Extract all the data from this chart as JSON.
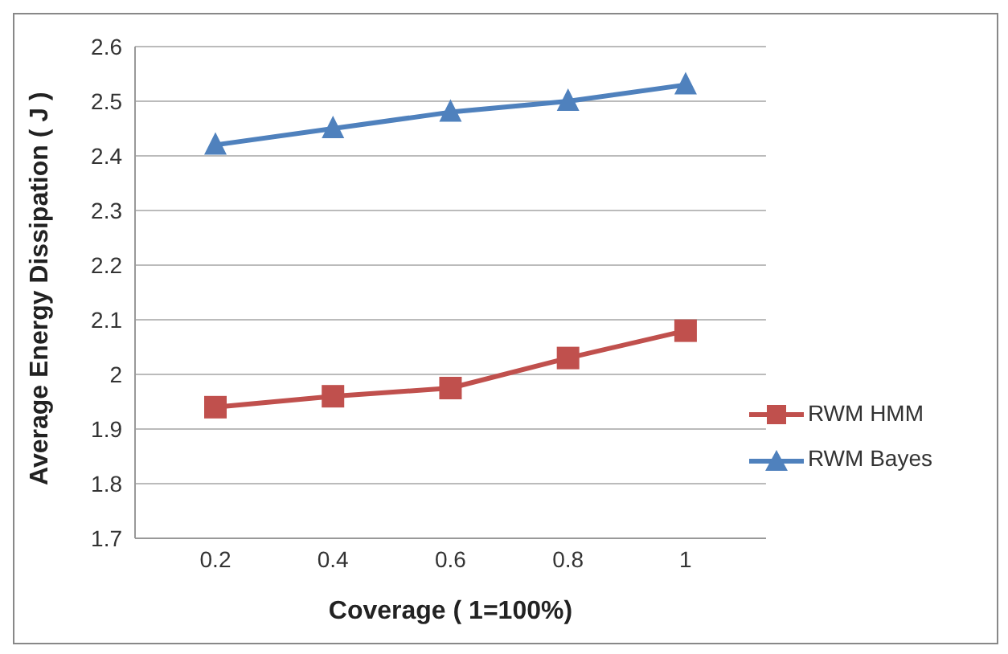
{
  "chart_data": {
    "type": "line",
    "xlabel": "Coverage ( 1=100%)",
    "ylabel": "Average Energy Dissipation ( J )",
    "categories": [
      "0.2",
      "0.4",
      "0.6",
      "0.8",
      "1"
    ],
    "series": [
      {
        "name": "RWM HMM",
        "color": "#c0504d",
        "values": [
          1.94,
          1.96,
          1.975,
          2.03,
          2.08
        ],
        "marker": "square"
      },
      {
        "name": "RWM Bayes",
        "color": "#4f81bd",
        "values": [
          2.42,
          2.45,
          2.48,
          2.5,
          2.53
        ],
        "marker": "triangle"
      }
    ],
    "ylim": [
      1.7,
      2.6
    ],
    "yticks": [
      1.7,
      1.8,
      1.9,
      2,
      2.1,
      2.2,
      2.3,
      2.4,
      2.5,
      2.6
    ],
    "grid": "y",
    "legend": "right"
  }
}
